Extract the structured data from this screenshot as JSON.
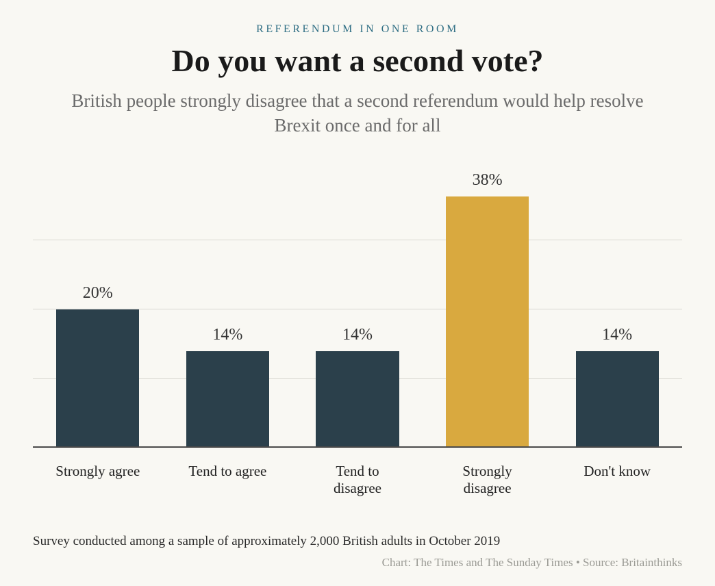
{
  "header": {
    "eyebrow": "REFERENDUM IN ONE ROOM",
    "headline": "Do you want a second vote?",
    "subhead": "British people strongly disagree that a second referendum would help resolve Brexit once and for all"
  },
  "chart": {
    "type": "bar",
    "background_color": "#f9f8f3",
    "grid_color": "#d9d8d2",
    "baseline_color": "#4a4a4a",
    "value_suffix": "%",
    "value_fontsize": 24,
    "value_color": "#333333",
    "label_fontsize": 21,
    "label_color": "#222222",
    "y_max": 40,
    "gridlines_at": [
      10,
      20,
      30
    ],
    "bar_width_pct": 64,
    "default_bar_color": "#2b404b",
    "highlight_bar_color": "#d9a93f",
    "bars": [
      {
        "label": "Strongly agree",
        "value": 20,
        "color": "#2b404b"
      },
      {
        "label": "Tend to agree",
        "value": 14,
        "color": "#2b404b"
      },
      {
        "label": "Tend to disagree",
        "value": 14,
        "color": "#2b404b"
      },
      {
        "label": "Strongly disagree",
        "value": 38,
        "color": "#d9a93f"
      },
      {
        "label": "Don't know",
        "value": 14,
        "color": "#2b404b"
      }
    ]
  },
  "footer": {
    "note": "Survey conducted among a sample of approximately 2,000 British adults in October 2019",
    "credit": "Chart: The Times and The Sunday Times • Source: Britainthinks"
  }
}
